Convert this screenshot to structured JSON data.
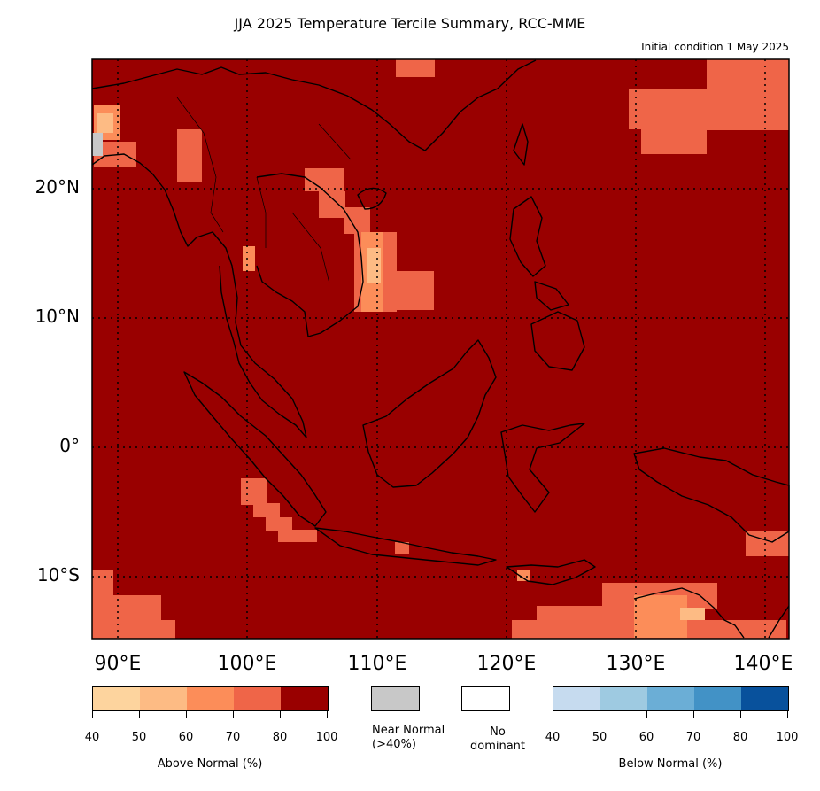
{
  "title": "JJA 2025 Temperature Tercile Summary, RCC-MME",
  "subtitle": "Initial condition 1 May 2025",
  "map": {
    "lat_labels": [
      "20°N",
      "10°N",
      "0°",
      "10°S"
    ],
    "lon_labels": [
      "90°E",
      "100°E",
      "110°E",
      "120°E",
      "130°E",
      "140°E"
    ],
    "background_color": "#990000",
    "land_outline_color": "#000000"
  },
  "legend": {
    "above_normal": {
      "caption": "Above Normal (%)",
      "ticks": [
        "40",
        "50",
        "60",
        "70",
        "80",
        "100"
      ],
      "colors": [
        "#fdd49e",
        "#fdbb84",
        "#fc8d59",
        "#ef6548",
        "#990000"
      ]
    },
    "near_normal": {
      "caption": "Near Normal\n(>40%)",
      "line1": "Near Normal",
      "line2": "(>40%)",
      "color": "#c8c8c8"
    },
    "no_dominant": {
      "line1": "No",
      "line2": "dominant",
      "color": "#ffffff"
    },
    "below_normal": {
      "caption": "Below Normal (%)",
      "ticks": [
        "40",
        "50",
        "60",
        "70",
        "80",
        "100"
      ],
      "colors": [
        "#c6dbef",
        "#9ecae1",
        "#6baed6",
        "#4292c6",
        "#08519c"
      ]
    }
  }
}
